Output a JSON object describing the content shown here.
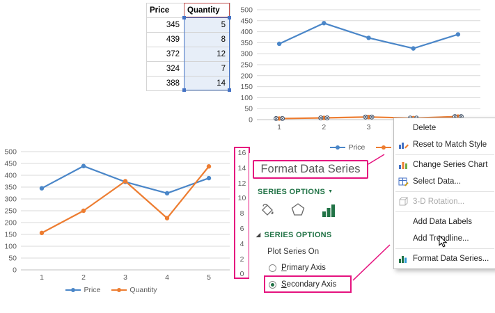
{
  "colors": {
    "price_series": "#4a86c8",
    "quantity_series": "#ed7d31",
    "callout_magenta": "#e5127e",
    "pane_green": "#217346",
    "selection_blue": "#4472c4",
    "header_red": "#c0504d",
    "axis_text": "#595959",
    "gridline": "#d9d9d9"
  },
  "table": {
    "headers": [
      "Price",
      "Quantity"
    ],
    "rows": [
      {
        "price": "345",
        "quantity": "5"
      },
      {
        "price": "439",
        "quantity": "8"
      },
      {
        "price": "372",
        "quantity": "12"
      },
      {
        "price": "324",
        "quantity": "7"
      },
      {
        "price": "388",
        "quantity": "14"
      }
    ]
  },
  "chart_data": [
    {
      "name": "top-chart",
      "type": "line",
      "title": "",
      "x": [
        1,
        2,
        3,
        4,
        5
      ],
      "series": [
        {
          "name": "Price",
          "values": [
            345,
            439,
            372,
            324,
            388
          ],
          "color": "#4a86c8"
        },
        {
          "name": "Quantity",
          "values": [
            5,
            8,
            12,
            7,
            14
          ],
          "color": "#ed7d31",
          "selected": true
        }
      ],
      "ylim": [
        0,
        500
      ],
      "ytick_step": 50,
      "grid": true,
      "legend_position": "bottom"
    },
    {
      "name": "bottom-chart",
      "type": "line",
      "title": "",
      "x": [
        1,
        2,
        3,
        4,
        5
      ],
      "series": [
        {
          "name": "Price",
          "values": [
            345,
            439,
            372,
            324,
            388
          ],
          "color": "#4a86c8",
          "axis": "primary"
        },
        {
          "name": "Quantity",
          "values": [
            5,
            8,
            12,
            7,
            14
          ],
          "color": "#ed7d31",
          "axis": "secondary"
        }
      ],
      "ylim": [
        0,
        500
      ],
      "ytick_step": 50,
      "secondary_ylim": [
        0,
        16
      ],
      "secondary_ytick_step": 2,
      "grid": true,
      "legend_position": "bottom"
    }
  ],
  "format_pane": {
    "title": "Format Data Series",
    "dropdown_label": "SERIES OPTIONS",
    "dropdown_arrow": "▼",
    "tab_icons": [
      "fill-line",
      "effects",
      "series-options"
    ],
    "section_glyph": "◢",
    "section_label": "SERIES OPTIONS",
    "plot_series_on": "Plot Series On",
    "radios": [
      {
        "label": "Primary Axis",
        "selected": false
      },
      {
        "label": "Secondary Axis",
        "selected": true,
        "highlighted": true
      }
    ]
  },
  "context_menu": {
    "items": [
      {
        "label": "Delete"
      },
      {
        "label": "Reset to Match Style",
        "icon": "reset-style-icon"
      },
      {
        "label": "Change Series Chart",
        "icon": "chart-type-icon",
        "sep_before": true
      },
      {
        "label": "Select Data...",
        "icon": "select-data-icon"
      },
      {
        "label": "3-D Rotation...",
        "icon": "rotation-3d-icon",
        "disabled": true,
        "sep_before": true
      },
      {
        "label": "Add Data Labels",
        "sep_before": true
      },
      {
        "label": "Add Trendline..."
      },
      {
        "label": "Format Data Series...",
        "icon": "format-series-icon",
        "sep_before": true
      }
    ]
  }
}
